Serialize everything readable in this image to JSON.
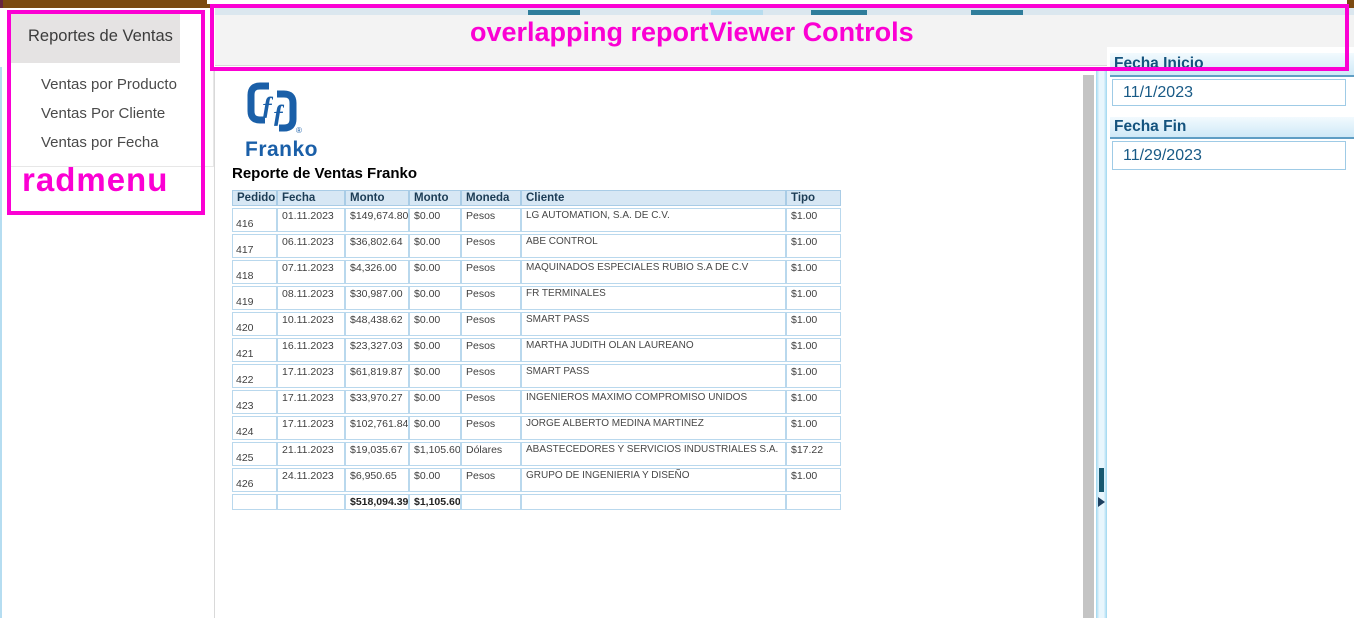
{
  "colors": {
    "annotation_magenta": "#fb00d3",
    "brand_blue": "#1a5fa8",
    "panel_label_blue": "#14537e",
    "table_header_bg": "#d7e7f4",
    "top_bar_brown": "#7b4a10"
  },
  "annotations": {
    "toolbar_note": "overlapping reportViewer Controls",
    "menu_note": "radmenu"
  },
  "menu": {
    "header": "Reportes de Ventas",
    "items": [
      {
        "label": "Ventas por Producto"
      },
      {
        "label": "Ventas Por Cliente"
      },
      {
        "label": "Ventas por Fecha"
      }
    ]
  },
  "report": {
    "logo": {
      "text": "Franko",
      "registered": "®"
    },
    "title": "Reporte de Ventas Franko",
    "table": {
      "headers": [
        "Pedido",
        "Fecha",
        "Monto",
        "Monto",
        "Moneda",
        "Cliente",
        "Tipo"
      ],
      "rows": [
        [
          "416",
          "01.11.2023",
          "$149,674.80",
          "$0.00",
          "Pesos",
          "LG AUTOMATION, S.A. DE C.V.",
          "$1.00"
        ],
        [
          "417",
          "06.11.2023",
          "$36,802.64",
          "$0.00",
          "Pesos",
          "ABE CONTROL",
          "$1.00"
        ],
        [
          "418",
          "07.11.2023",
          "$4,326.00",
          "$0.00",
          "Pesos",
          "MAQUINADOS ESPECIALES RUBIO S.A DE C.V",
          "$1.00"
        ],
        [
          "419",
          "08.11.2023",
          "$30,987.00",
          "$0.00",
          "Pesos",
          "FR TERMINALES",
          "$1.00"
        ],
        [
          "420",
          "10.11.2023",
          "$48,438.62",
          "$0.00",
          "Pesos",
          "SMART PASS",
          "$1.00"
        ],
        [
          "421",
          "16.11.2023",
          "$23,327.03",
          "$0.00",
          "Pesos",
          "MARTHA JUDITH OLAN LAUREANO",
          "$1.00"
        ],
        [
          "422",
          "17.11.2023",
          "$61,819.87",
          "$0.00",
          "Pesos",
          "SMART PASS",
          "$1.00"
        ],
        [
          "423",
          "17.11.2023",
          "$33,970.27",
          "$0.00",
          "Pesos",
          "INGENIEROS MAXIMO COMPROMISO UNIDOS",
          "$1.00"
        ],
        [
          "424",
          "17.11.2023",
          "$102,761.84",
          "$0.00",
          "Pesos",
          "JORGE ALBERTO MEDINA MARTINEZ",
          "$1.00"
        ],
        [
          "425",
          "21.11.2023",
          "$19,035.67",
          "$1,105.60",
          "Dólares",
          "ABASTECEDORES Y SERVICIOS INDUSTRIALES S.A.",
          "$17.22"
        ],
        [
          "426",
          "24.11.2023",
          "$6,950.65",
          "$0.00",
          "Pesos",
          "GRUPO DE INGENIERIA Y DISEÑO",
          "$1.00"
        ]
      ],
      "totals": {
        "monto1": "$518,094.39",
        "monto2": "$1,105.60"
      }
    }
  },
  "filters": {
    "fecha_inicio": {
      "label": "Fecha Inicio",
      "value": "11/1/2023"
    },
    "fecha_fin": {
      "label": "Fecha Fin",
      "value": "11/29/2023"
    }
  }
}
